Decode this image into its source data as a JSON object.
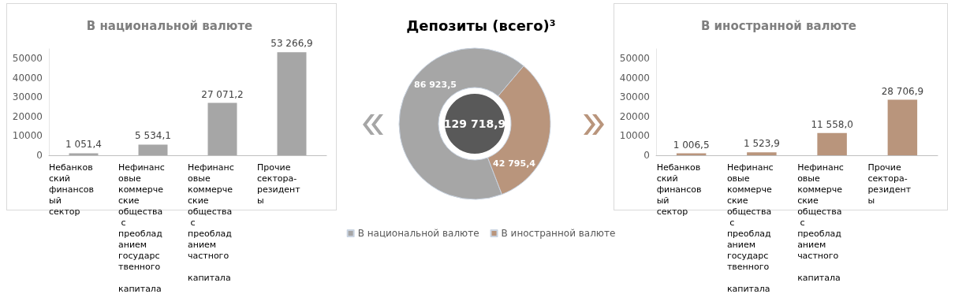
{
  "chart_data": [
    {
      "type": "bar",
      "title": "В национальной валюте",
      "categories": [
        "Небанковский финансовый сектор",
        "Нефинансовые коммерческие общества с преобладанием государственного капитала",
        "Нефинансовые коммерческие общества с преобладанием частного капитала",
        "Прочие сектора-резиденты"
      ],
      "values": [
        1051.4,
        5534.1,
        27071.2,
        53266.9
      ],
      "value_labels": [
        "1 051,4",
        "5 534,1",
        "27 071,2",
        "53 266,9"
      ],
      "color": "#a6a6a6",
      "ylim": [
        0,
        55000
      ],
      "yticks": [
        0,
        10000,
        20000,
        30000,
        40000,
        50000
      ],
      "grid": false
    },
    {
      "type": "donut",
      "title": "Депозиты (всего)³",
      "categories": [
        "В национальной валюте",
        "В иностранной валюте"
      ],
      "values": [
        86923.5,
        42795.4
      ],
      "value_labels": [
        "86 923,5",
        "42 795,4"
      ],
      "colors": [
        "#a6a6a6",
        "#b9957c"
      ],
      "annotations": [
        "129 718,9"
      ],
      "legend": "bottom"
    },
    {
      "type": "bar",
      "title": "В иностранной валюте",
      "categories": [
        "Небанковский финансовый сектор",
        "Нефинансовые коммерческие общества с преобладанием государственного капитала",
        "Нефинансовые коммерческие общества с преобладанием частного капитала",
        "Прочие сектора-резиденты"
      ],
      "values": [
        1006.5,
        1523.9,
        11558.0,
        28706.9
      ],
      "value_labels": [
        "1 006,5",
        "1 523,9",
        "11 558,0",
        "28 706,9"
      ],
      "color": "#b9957c",
      "ylim": [
        0,
        55000
      ],
      "yticks": [
        0,
        10000,
        20000,
        30000,
        40000,
        50000
      ],
      "grid": false
    }
  ]
}
